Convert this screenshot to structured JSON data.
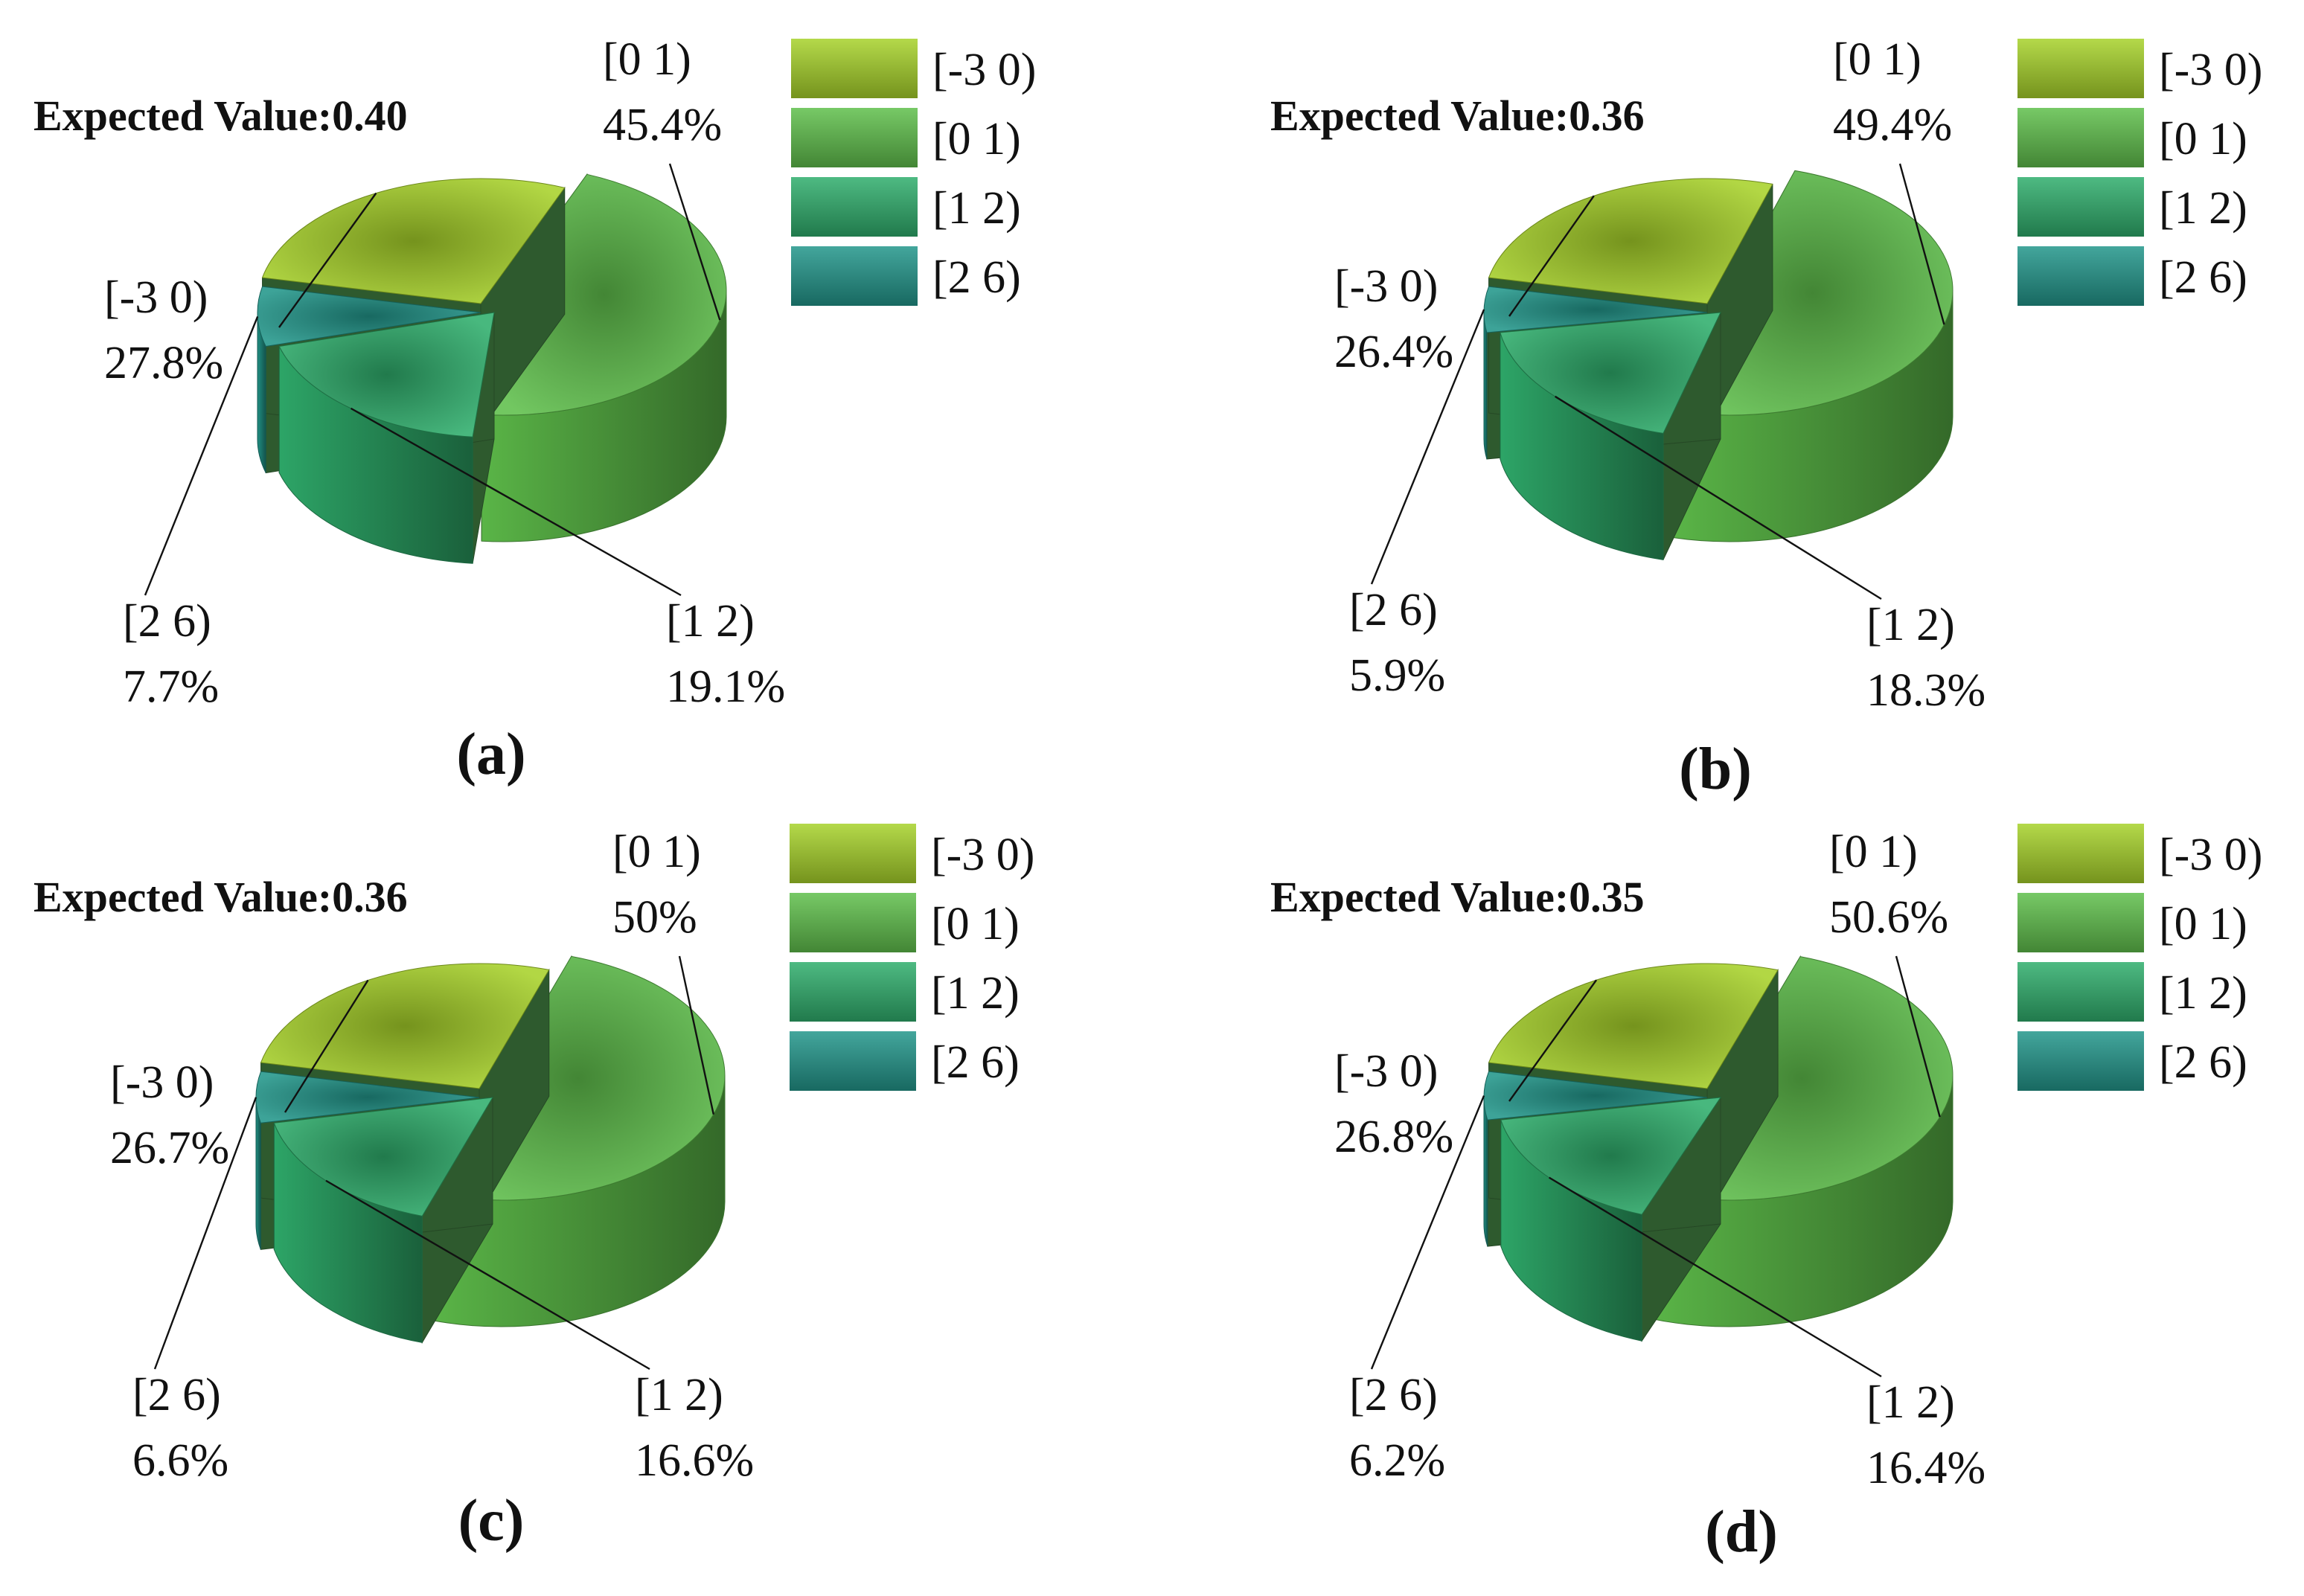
{
  "figure": {
    "legend": [
      "[-3 0)",
      "[0 1)",
      "[1 2)",
      "[2 6)"
    ],
    "colors": {
      "[-3 0)": "#a7d22a",
      "[0 1)": "#5fbf4b",
      "[1 2)": "#2fae6c",
      "[2 6)": "#22968a",
      "wall": "#2e5a2e"
    }
  },
  "chart_data": [
    {
      "type": "pie",
      "panel_label": "(a)",
      "title": "Expected Value:0.40",
      "categories": [
        "[-3 0)",
        "[0 1)",
        "[1 2)",
        "[2 6)"
      ],
      "values": [
        27.8,
        45.4,
        19.1,
        7.7
      ],
      "value_labels": [
        "27.8%",
        "45.4%",
        "19.1%",
        "7.7%"
      ],
      "legend_position": "top-right"
    },
    {
      "type": "pie",
      "panel_label": "(b)",
      "title": "Expected Value:0.36",
      "categories": [
        "[-3 0)",
        "[0 1)",
        "[1 2)",
        "[2 6)"
      ],
      "values": [
        26.4,
        49.4,
        18.3,
        5.9
      ],
      "value_labels": [
        "26.4%",
        "49.4%",
        "18.3%",
        "5.9%"
      ],
      "legend_position": "top-right"
    },
    {
      "type": "pie",
      "panel_label": "(c)",
      "title": "Expected Value:0.36",
      "categories": [
        "[-3 0)",
        "[0 1)",
        "[1 2)",
        "[2 6)"
      ],
      "values": [
        26.7,
        50,
        16.6,
        6.6
      ],
      "value_labels": [
        "26.7%",
        "50%",
        "16.6%",
        "6.6%"
      ],
      "legend_position": "top-right"
    },
    {
      "type": "pie",
      "panel_label": "(d)",
      "title": "Expected Value:0.35",
      "categories": [
        "[-3 0)",
        "[0 1)",
        "[1 2)",
        "[2 6)"
      ],
      "values": [
        26.8,
        50.6,
        16.4,
        6.2
      ],
      "value_labels": [
        "26.8%",
        "50.6%",
        "16.4%",
        "6.2%"
      ],
      "legend_position": "top-right"
    }
  ]
}
